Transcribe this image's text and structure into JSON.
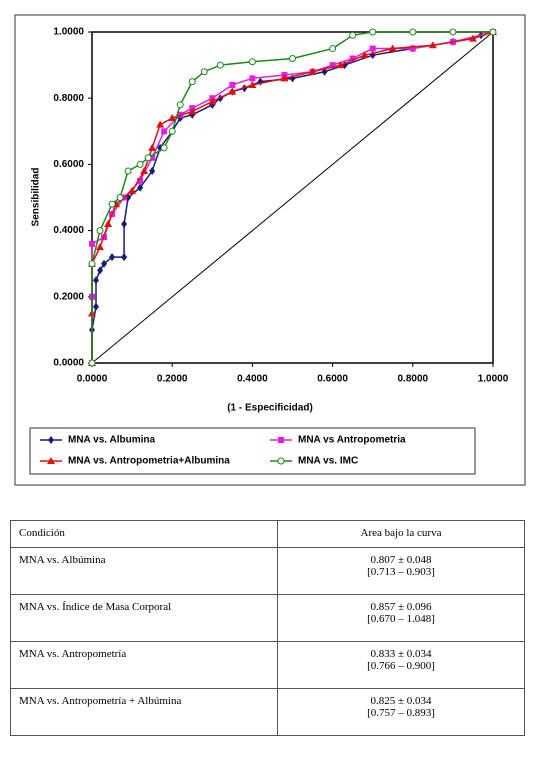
{
  "chart_data": {
    "type": "line",
    "xlabel": "(1 - Especificidad)",
    "ylabel": "Sensibilidad",
    "xlim": [
      0,
      1
    ],
    "ylim": [
      0,
      1
    ],
    "xticks": [
      {
        "value": 0,
        "label": "0.0000"
      },
      {
        "value": 0.2,
        "label": "0.2000"
      },
      {
        "value": 0.4,
        "label": "0.4000"
      },
      {
        "value": 0.6,
        "label": "0.6000"
      },
      {
        "value": 0.8,
        "label": "0.8000"
      },
      {
        "value": 1,
        "label": "1.0000"
      }
    ],
    "yticks": [
      {
        "value": 0,
        "label": "0.0000"
      },
      {
        "value": 0.2,
        "label": "0.2000"
      },
      {
        "value": 0.4,
        "label": "0.4000"
      },
      {
        "value": 0.6,
        "label": "0.6000"
      },
      {
        "value": 0.8,
        "label": "0.8000"
      },
      {
        "value": 1,
        "label": "1.0000"
      }
    ],
    "grid": false,
    "diagonal": true,
    "series": [
      {
        "name": "MNA vs. Albumina",
        "color": "#1a1a7a",
        "marker": "diamond",
        "x": [
          0,
          0,
          0.01,
          0.01,
          0.02,
          0.03,
          0.05,
          0.08,
          0.08,
          0.09,
          0.12,
          0.15,
          0.17,
          0.2,
          0.22,
          0.25,
          0.3,
          0.32,
          0.35,
          0.38,
          0.42,
          0.5,
          0.58,
          0.63,
          0.7,
          0.8,
          0.9,
          0.97,
          1
        ],
        "values": [
          0,
          0.1,
          0.17,
          0.25,
          0.28,
          0.3,
          0.32,
          0.32,
          0.42,
          0.5,
          0.53,
          0.58,
          0.65,
          0.7,
          0.74,
          0.75,
          0.78,
          0.8,
          0.82,
          0.83,
          0.85,
          0.86,
          0.88,
          0.9,
          0.93,
          0.95,
          0.97,
          0.99,
          1
        ]
      },
      {
        "name": "MNA vs Antropometria",
        "color": "#e020e0",
        "marker": "square",
        "x": [
          0,
          0,
          0,
          0.03,
          0.05,
          0.08,
          0.12,
          0.15,
          0.18,
          0.22,
          0.25,
          0.3,
          0.35,
          0.4,
          0.48,
          0.55,
          0.6,
          0.65,
          0.7,
          0.8,
          0.9,
          1
        ],
        "values": [
          0,
          0.2,
          0.36,
          0.38,
          0.45,
          0.5,
          0.55,
          0.62,
          0.7,
          0.75,
          0.77,
          0.8,
          0.84,
          0.86,
          0.87,
          0.88,
          0.9,
          0.92,
          0.95,
          0.95,
          0.97,
          1
        ]
      },
      {
        "name": "MNA vs. Antropometria+Albumina",
        "color": "#e01010",
        "marker": "triangle",
        "x": [
          0,
          0,
          0,
          0.02,
          0.04,
          0.06,
          0.1,
          0.13,
          0.15,
          0.17,
          0.2,
          0.25,
          0.3,
          0.35,
          0.4,
          0.48,
          0.55,
          0.62,
          0.68,
          0.75,
          0.85,
          0.95,
          1
        ],
        "values": [
          0,
          0.15,
          0.3,
          0.35,
          0.42,
          0.48,
          0.52,
          0.58,
          0.65,
          0.72,
          0.74,
          0.76,
          0.79,
          0.82,
          0.84,
          0.86,
          0.88,
          0.9,
          0.93,
          0.95,
          0.96,
          0.98,
          1
        ]
      },
      {
        "name": "MNA vs. IMC",
        "color": "#1a8a1a",
        "marker": "circle",
        "x": [
          0,
          0,
          0.02,
          0.05,
          0.07,
          0.09,
          0.12,
          0.14,
          0.18,
          0.2,
          0.22,
          0.25,
          0.28,
          0.32,
          0.4,
          0.5,
          0.6,
          0.65,
          0.7,
          0.8,
          0.9,
          1
        ],
        "values": [
          0,
          0.3,
          0.4,
          0.48,
          0.5,
          0.58,
          0.6,
          0.62,
          0.65,
          0.7,
          0.78,
          0.85,
          0.88,
          0.9,
          0.91,
          0.92,
          0.95,
          0.99,
          1,
          1,
          1,
          1
        ]
      }
    ]
  },
  "table": {
    "header": [
      "Condición",
      "Area bajo la curva"
    ],
    "rows": [
      [
        "MNA vs. Albúmina",
        "0.807 ± 0.048",
        "[0.713 – 0.903]"
      ],
      [
        "MNA vs. Índice de Masa Corporal",
        "0.857 ± 0.096",
        "[0.670 – 1.048]"
      ],
      [
        "MNA vs. Antropometría",
        "0.833 ± 0.034",
        "[0.766 – 0.900]"
      ],
      [
        "MNA vs. Antropometría + Albúmina",
        "0.825 ± 0.034",
        "[0.757 – 0.893]"
      ]
    ]
  }
}
